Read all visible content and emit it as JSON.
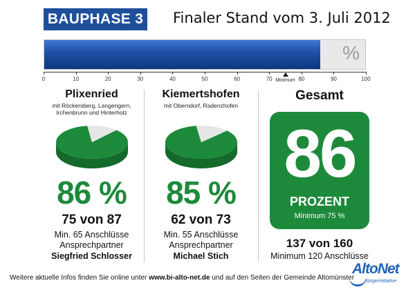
{
  "header": {
    "badge": "BAUPHASE 3",
    "headline": "Finaler Stand vom 3. Juli 2012"
  },
  "progress": {
    "value": 86,
    "max": 100,
    "minimum": 75,
    "symbol": "%",
    "minimum_label": "Minimum",
    "ticks": [
      "0",
      "10",
      "20",
      "30",
      "40",
      "50",
      "60",
      "70",
      "80",
      "90",
      "100"
    ]
  },
  "chart_data": [
    {
      "type": "pie",
      "title": "Plixenried",
      "subtitle": "mit Röckersberg, Langengern, Irchenbrunn und Hinterholz",
      "values": [
        86,
        14
      ],
      "percent_label": "86 %",
      "count_label": "75 von 87",
      "minimum_label": "Min. 65 Anschlüsse",
      "contact_label": "Ansprechpartner",
      "contact_name": "Siegfried Schlosser"
    },
    {
      "type": "pie",
      "title": "Kiemertshofen",
      "subtitle": "mit Oberndorf, Radenzhofen",
      "values": [
        85,
        15
      ],
      "percent_label": "85 %",
      "count_label": "62 von 73",
      "minimum_label": "Min. 55 Anschlüsse",
      "contact_label": "Ansprechpartner",
      "contact_name": "Michael Stich"
    }
  ],
  "total": {
    "title": "Gesamt",
    "value": "86",
    "unit": "PROZENT",
    "minimum": "Minimum 75 %",
    "count": "137 von 160",
    "minimum_line": "Minimum 120 Anschlüsse"
  },
  "footer": {
    "prefix": "Weitere aktuelle Infos finden Sie online unter ",
    "url": "www.bi-alto-net.de",
    "suffix": " und auf den Seiten der Gemeinde Altomünster"
  },
  "logo": {
    "text": "AltoNet",
    "sub": "Bürgerinitiative"
  },
  "colors": {
    "brand_blue": "#1e4f9a",
    "green": "#1d8a3b",
    "pie_remainder": "#e6e6e6"
  }
}
